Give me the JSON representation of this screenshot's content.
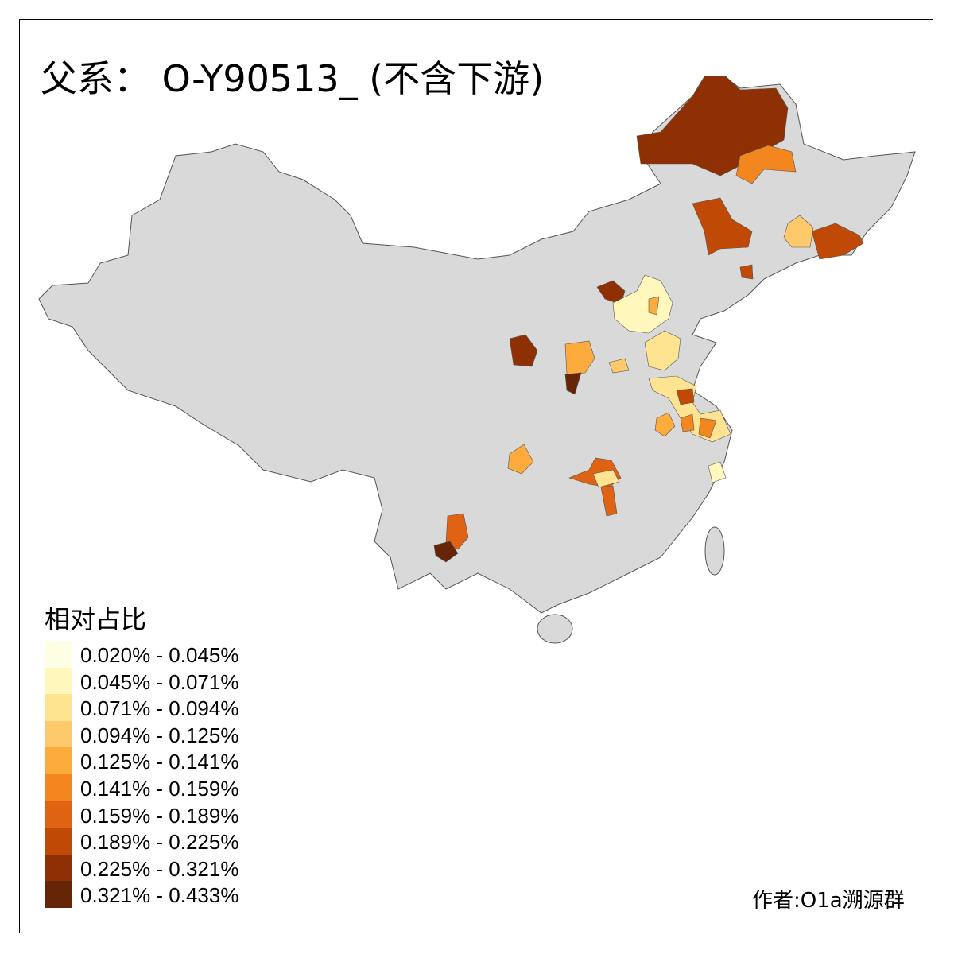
{
  "title": "父系： O-Y90513_ (不含下游)",
  "legend": {
    "title": "相对占比",
    "items": [
      {
        "label": "0.020% - 0.045%",
        "color": "#ffffe5"
      },
      {
        "label": "0.045% - 0.071%",
        "color": "#fff7bc"
      },
      {
        "label": "0.071% - 0.094%",
        "color": "#fee391"
      },
      {
        "label": "0.094% - 0.125%",
        "color": "#fec96a"
      },
      {
        "label": "0.125% - 0.141%",
        "color": "#fdab3d"
      },
      {
        "label": "0.141% - 0.159%",
        "color": "#f3861f"
      },
      {
        "label": "0.159% - 0.189%",
        "color": "#df6312"
      },
      {
        "label": "0.189% - 0.225%",
        "color": "#c04a05"
      },
      {
        "label": "0.225% - 0.321%",
        "color": "#8f3004"
      },
      {
        "label": "0.321% - 0.433%",
        "color": "#662506"
      }
    ]
  },
  "base_color": "#d9d9d9",
  "author": "作者:O1a溯源群"
}
